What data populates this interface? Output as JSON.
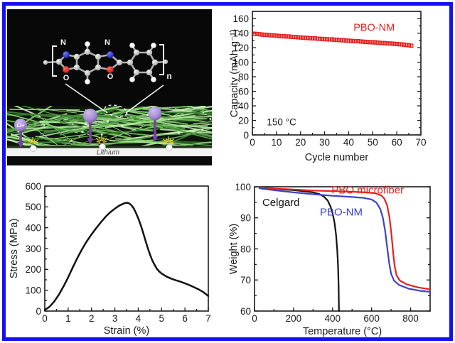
{
  "figure": {
    "border_color": "#1511ee",
    "background": "#ffffff"
  },
  "illustration": {
    "background": "#080808",
    "molecule": {
      "label_n_left": "N",
      "label_n_right": "N",
      "label_o_left": "O",
      "label_o_right": "O",
      "repeat_subscript": "n",
      "colors": {
        "carbon": "#c9c9c9",
        "hydrogen": "#ffffff",
        "nitrogen": "#2e3fd8",
        "oxygen": "#e23222",
        "bond": "#b0b0b0",
        "bracket": "#f2f2f2"
      }
    },
    "membrane": {
      "mat_background": "#0d140a",
      "fiber_colors": [
        "#4f9c41",
        "#6cbc59",
        "#8ad474",
        "#a9e796",
        "#3a7f31",
        "#c2f0b2"
      ]
    },
    "lithium_ion": {
      "label": "Li+",
      "sphere_color": "#a88fd6",
      "arrow_color": "#7d3fa0"
    },
    "spark_color": "#f2cf1d",
    "substrate": {
      "label": "Lithium",
      "strip_color": "#f2f2f2",
      "text_color": "#4a4a4a"
    }
  },
  "chart_data": [
    {
      "id": "capacity",
      "type": "scatter",
      "xlabel": "Cycle number",
      "ylabel": "Capacity (mAh g⁻¹)",
      "xlim": [
        0,
        70
      ],
      "ylim": [
        0,
        170
      ],
      "xticks": [
        0,
        10,
        20,
        30,
        40,
        50,
        60,
        70
      ],
      "yticks": [
        0,
        20,
        40,
        60,
        80,
        100,
        120,
        140,
        160
      ],
      "xminor": 5,
      "yminor": 10,
      "grid": false,
      "annotations": [
        {
          "text": "PBO-NM",
          "color": "#e8211f",
          "x": 42,
          "y": 143,
          "size": 14.5
        },
        {
          "text": "150 °C",
          "color": "#1a1a1a",
          "x": 6,
          "y": 13,
          "size": 13.5
        }
      ],
      "series": [
        {
          "name": "PBO-NM",
          "color": "#e8211f",
          "marker": "open-square",
          "x": [
            1,
            2,
            3,
            4,
            5,
            6,
            7,
            8,
            9,
            10,
            11,
            12,
            13,
            14,
            15,
            16,
            17,
            18,
            19,
            20,
            21,
            22,
            23,
            24,
            25,
            26,
            27,
            28,
            29,
            30,
            31,
            32,
            33,
            34,
            35,
            36,
            37,
            38,
            39,
            40,
            41,
            42,
            43,
            44,
            45,
            46,
            47,
            48,
            49,
            50,
            51,
            52,
            53,
            54,
            55,
            56,
            57,
            58,
            59,
            60,
            61,
            62,
            63,
            64,
            65,
            66
          ],
          "y": [
            139.2,
            138.8,
            138.5,
            138.1,
            137.8,
            137.7,
            137.3,
            137.0,
            136.9,
            136.5,
            136.2,
            135.7,
            135.9,
            135.4,
            135.5,
            135.0,
            134.8,
            134.7,
            134.3,
            134.1,
            133.8,
            133.6,
            133.3,
            133.1,
            132.8,
            132.9,
            132.4,
            132.3,
            132.0,
            131.8,
            131.6,
            131.3,
            131.5,
            130.9,
            131.0,
            130.5,
            130.3,
            130.2,
            129.8,
            129.7,
            129.4,
            129.1,
            128.9,
            129.0,
            128.5,
            128.3,
            128.0,
            127.8,
            127.6,
            127.3,
            127.5,
            126.9,
            126.7,
            126.5,
            126.3,
            126.0,
            125.8,
            125.6,
            125.3,
            125.1,
            124.8,
            124.5,
            124.2,
            123.7,
            123.3,
            122.7
          ]
        }
      ]
    },
    {
      "id": "stress",
      "type": "line",
      "xlabel": "Strain (%)",
      "ylabel": "Stress (MPa)",
      "xlim": [
        0,
        7
      ],
      "ylim": [
        0,
        600
      ],
      "xticks": [
        0,
        1,
        2,
        3,
        4,
        5,
        6,
        7
      ],
      "yticks": [
        0,
        100,
        200,
        300,
        400,
        500,
        600
      ],
      "xminor": 0.5,
      "yminor": 50,
      "grid": false,
      "annotations": [],
      "series": [
        {
          "name": "PBO-NM stress strain",
          "color": "#111111",
          "width": 2.5,
          "x": [
            0,
            0.2,
            0.4,
            0.6,
            0.8,
            1.0,
            1.2,
            1.4,
            1.6,
            1.8,
            2.0,
            2.2,
            2.4,
            2.6,
            2.8,
            3.0,
            3.2,
            3.4,
            3.5,
            3.6,
            3.7,
            3.8,
            3.9,
            4.0,
            4.1,
            4.2,
            4.3,
            4.4,
            4.5,
            4.6,
            4.7,
            4.8,
            4.9,
            5.0,
            5.2,
            5.4,
            5.6,
            5.8,
            6.0,
            6.2,
            6.4,
            6.6,
            6.8,
            7.0
          ],
          "y": [
            5,
            20,
            45,
            78,
            118,
            162,
            210,
            256,
            298,
            335,
            368,
            398,
            426,
            452,
            474,
            492,
            507,
            517,
            520,
            518,
            509,
            494,
            472,
            446,
            415,
            380,
            342,
            305,
            272,
            244,
            222,
            203,
            190,
            180,
            166,
            156,
            148,
            141,
            133,
            124,
            114,
            103,
            90,
            72
          ]
        }
      ]
    },
    {
      "id": "tga",
      "type": "line",
      "xlabel": "Temperature (°C)",
      "ylabel": "Weight (%)",
      "xlim": [
        0,
        900
      ],
      "ylim": [
        60,
        100
      ],
      "xticks": [
        0,
        200,
        400,
        600,
        800
      ],
      "yticks": [
        60,
        70,
        80,
        90,
        100
      ],
      "xminor": 100,
      "yminor": 5,
      "grid": false,
      "annotations": [
        {
          "text": "Celgard",
          "color": "#111111",
          "x": 40,
          "y": 93.8,
          "size": 15
        },
        {
          "text": "PBO microfiber",
          "color": "#e8211f",
          "x": 395,
          "y": 97.8,
          "size": 15
        },
        {
          "text": "PBO-NM",
          "color": "#3b43c8",
          "x": 335,
          "y": 90.8,
          "size": 15
        }
      ],
      "series": [
        {
          "name": "Celgard",
          "color": "#111111",
          "width": 2.2,
          "x": [
            25,
            60,
            100,
            150,
            200,
            250,
            300,
            330,
            355,
            375,
            390,
            400,
            410,
            418,
            424,
            428,
            431,
            433
          ],
          "y": [
            99.8,
            99.6,
            99.4,
            99.1,
            98.9,
            98.6,
            98.2,
            97.7,
            96.9,
            95.6,
            93.6,
            91.5,
            88.5,
            84.5,
            79.5,
            74.5,
            68.0,
            60.0
          ]
        },
        {
          "name": "PBO microfiber",
          "color": "#e8211f",
          "width": 2.2,
          "x": [
            25,
            100,
            200,
            300,
            400,
            500,
            570,
            620,
            650,
            665,
            680,
            692,
            702,
            710,
            718,
            728,
            745,
            780,
            840,
            900
          ],
          "y": [
            99.8,
            99.4,
            99.1,
            98.8,
            98.6,
            98.4,
            98.2,
            97.9,
            97.2,
            96.2,
            94.0,
            90.0,
            84.5,
            79.0,
            74.5,
            71.5,
            69.8,
            68.6,
            67.6,
            67.0
          ]
        },
        {
          "name": "PBO-NM",
          "color": "#3b43c8",
          "width": 2.2,
          "x": [
            25,
            100,
            200,
            300,
            400,
            500,
            560,
            600,
            625,
            645,
            658,
            670,
            680,
            690,
            700,
            715,
            740,
            790,
            850,
            900
          ],
          "y": [
            99.5,
            98.9,
            98.2,
            97.6,
            97.1,
            96.7,
            96.4,
            95.9,
            94.9,
            92.8,
            90.0,
            85.5,
            80.5,
            75.5,
            72.0,
            69.8,
            68.4,
            67.2,
            66.5,
            66.2
          ]
        }
      ]
    }
  ]
}
